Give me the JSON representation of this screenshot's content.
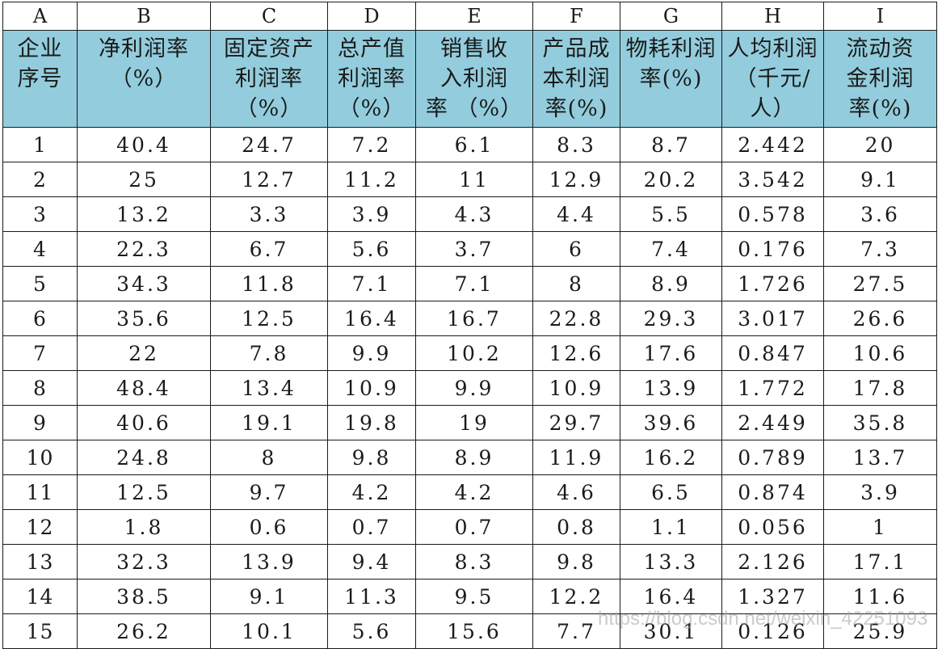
{
  "column_letters": [
    "A",
    "B",
    "C",
    "D",
    "E",
    "F",
    "G",
    "H",
    "I"
  ],
  "headers": [
    [
      "企业",
      "序号"
    ],
    [
      "净利润率",
      "（%）"
    ],
    [
      "固定资产",
      "利润率",
      "（%）"
    ],
    [
      "总产值",
      "利润率",
      "（%）"
    ],
    [
      "销售收",
      "入利润",
      "率 （%）"
    ],
    [
      "产品成",
      "本利润",
      "率(%)"
    ],
    [
      "物耗利润",
      "率(%)"
    ],
    [
      "人均利润",
      "（千元/",
      "人）"
    ],
    [
      "流动资",
      "金利润",
      "率(%)"
    ]
  ],
  "rows": [
    [
      "1",
      "40.4",
      "24.7",
      "7.2",
      "6.1",
      "8.3",
      "8.7",
      "2.442",
      "20"
    ],
    [
      "2",
      "25",
      "12.7",
      "11.2",
      "11",
      "12.9",
      "20.2",
      "3.542",
      "9.1"
    ],
    [
      "3",
      "13.2",
      "3.3",
      "3.9",
      "4.3",
      "4.4",
      "5.5",
      "0.578",
      "3.6"
    ],
    [
      "4",
      "22.3",
      "6.7",
      "5.6",
      "3.7",
      "6",
      "7.4",
      "0.176",
      "7.3"
    ],
    [
      "5",
      "34.3",
      "11.8",
      "7.1",
      "7.1",
      "8",
      "8.9",
      "1.726",
      "27.5"
    ],
    [
      "6",
      "35.6",
      "12.5",
      "16.4",
      "16.7",
      "22.8",
      "29.3",
      "3.017",
      "26.6"
    ],
    [
      "7",
      "22",
      "7.8",
      "9.9",
      "10.2",
      "12.6",
      "17.6",
      "0.847",
      "10.6"
    ],
    [
      "8",
      "48.4",
      "13.4",
      "10.9",
      "9.9",
      "10.9",
      "13.9",
      "1.772",
      "17.8"
    ],
    [
      "9",
      "40.6",
      "19.1",
      "19.8",
      "19",
      "29.7",
      "39.6",
      "2.449",
      "35.8"
    ],
    [
      "10",
      "24.8",
      "8",
      "9.8",
      "8.9",
      "11.9",
      "16.2",
      "0.789",
      "13.7"
    ],
    [
      "11",
      "12.5",
      "9.7",
      "4.2",
      "4.2",
      "4.6",
      "6.5",
      "0.874",
      "3.9"
    ],
    [
      "12",
      "1.8",
      "0.6",
      "0.7",
      "0.7",
      "0.8",
      "1.1",
      "0.056",
      "1"
    ],
    [
      "13",
      "32.3",
      "13.9",
      "9.4",
      "8.3",
      "9.8",
      "13.3",
      "2.126",
      "17.1"
    ],
    [
      "14",
      "38.5",
      "9.1",
      "11.3",
      "9.5",
      "12.2",
      "16.4",
      "1.327",
      "11.6"
    ],
    [
      "15",
      "26.2",
      "10.1",
      "5.6",
      "15.6",
      "7.7",
      "30.1",
      "0.126",
      "25.9"
    ]
  ],
  "watermark": "https://blog.csdn.net/weixin_42251093",
  "colors": {
    "header_fill": "#93cddd",
    "grid": "#1a1a1a"
  }
}
